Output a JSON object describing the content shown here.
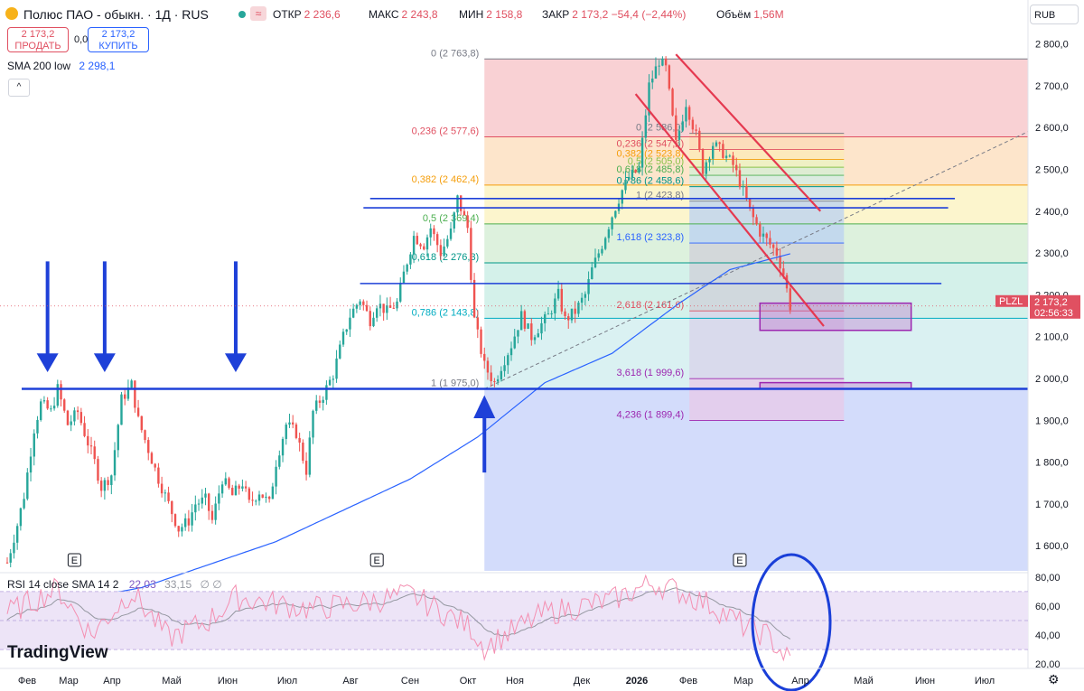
{
  "header": {
    "title": "Полюс ПАО - обыкн. · 1Д · RUS",
    "ohlc": [
      {
        "k": "ОТКР",
        "v": "2 236,6"
      },
      {
        "k": "МАКС",
        "v": "2 243,8"
      },
      {
        "k": "МИН",
        "v": "2 158,8"
      },
      {
        "k": "ЗАКР",
        "v": "2 173,2 −54,4 (−2,44%)"
      },
      {
        "k": "Объём",
        "v": "1,56M"
      }
    ],
    "wave_icon": "≈",
    "sell": {
      "price": "2 173,2",
      "label": "ПРОДАТЬ"
    },
    "buy": {
      "price": "2 173,2",
      "label": "КУПИТЬ"
    },
    "spread": "0,0",
    "currency": "RUB",
    "collapse_icon": "^"
  },
  "sma": {
    "label": "SMA 200 low",
    "value": "2 298,1"
  },
  "rsi": {
    "label": "RSI 14 close SMA 14 2",
    "value": "22,03",
    "sma_value": "33,15",
    "extra": "∅ ∅"
  },
  "branding": "TradingView",
  "colors": {
    "up": "#26a69a",
    "down": "#ef5350",
    "blue": "#1e40d8",
    "sma": "#2962ff",
    "rsi": "#7e57c2",
    "accent_red": "#e05061"
  },
  "chart_data": {
    "type": "candlestick",
    "symbol": "PLZL",
    "timeframe": "1Д",
    "y_axis": {
      "min": 1540,
      "max": 2840,
      "ticks": [
        "2 800,0",
        "2 700,0",
        "2 600,0",
        "2 500,0",
        "2 400,0",
        "2 300,0",
        "2 200,0",
        "2 100,0",
        "2 000,0",
        "1 900,0",
        "1 800,0",
        "1 700,0",
        "1 600,0"
      ]
    },
    "x_axis": {
      "labels": [
        "Фев",
        "Мар",
        "Апр",
        "Май",
        "Июн",
        "Июл",
        "Авг",
        "Сен",
        "Окт",
        "Ноя",
        "Дек",
        "2026",
        "Фев",
        "Мар",
        "Апр",
        "Май",
        "Июн",
        "Июл"
      ]
    },
    "price_path": [
      [
        0,
        1560
      ],
      [
        3,
        1650
      ],
      [
        5,
        1720
      ],
      [
        8,
        1880
      ],
      [
        10,
        1940
      ],
      [
        13,
        1920
      ],
      [
        15,
        1975
      ],
      [
        18,
        1890
      ],
      [
        21,
        1920
      ],
      [
        23,
        1870
      ],
      [
        26,
        1800
      ],
      [
        28,
        1740
      ],
      [
        31,
        1770
      ],
      [
        34,
        1950
      ],
      [
        37,
        1985
      ],
      [
        39,
        1900
      ],
      [
        42,
        1830
      ],
      [
        45,
        1760
      ],
      [
        48,
        1700
      ],
      [
        51,
        1640
      ],
      [
        54,
        1660
      ],
      [
        56,
        1700
      ],
      [
        59,
        1710
      ],
      [
        61,
        1660
      ],
      [
        64,
        1760
      ],
      [
        67,
        1720
      ],
      [
        70,
        1750
      ],
      [
        72,
        1700
      ],
      [
        75,
        1730
      ],
      [
        78,
        1700
      ],
      [
        80,
        1800
      ],
      [
        83,
        1890
      ],
      [
        86,
        1870
      ],
      [
        89,
        1780
      ],
      [
        91,
        1920
      ],
      [
        94,
        1960
      ],
      [
        97,
        2010
      ],
      [
        100,
        2100
      ],
      [
        102,
        2150
      ],
      [
        105,
        2190
      ],
      [
        108,
        2140
      ],
      [
        110,
        2180
      ],
      [
        113,
        2160
      ],
      [
        116,
        2180
      ],
      [
        118,
        2250
      ],
      [
        121,
        2340
      ],
      [
        124,
        2320
      ],
      [
        126,
        2360
      ],
      [
        129,
        2300
      ],
      [
        132,
        2350
      ],
      [
        134,
        2430
      ],
      [
        137,
        2360
      ],
      [
        139,
        2140
      ],
      [
        142,
        2030
      ],
      [
        145,
        1990
      ],
      [
        147,
        2030
      ],
      [
        150,
        2080
      ],
      [
        153,
        2150
      ],
      [
        156,
        2100
      ],
      [
        158,
        2120
      ],
      [
        161,
        2150
      ],
      [
        164,
        2200
      ],
      [
        166,
        2140
      ],
      [
        169,
        2160
      ],
      [
        172,
        2200
      ],
      [
        174,
        2260
      ],
      [
        177,
        2320
      ],
      [
        180,
        2390
      ],
      [
        183,
        2450
      ],
      [
        185,
        2480
      ],
      [
        188,
        2500
      ],
      [
        191,
        2700
      ],
      [
        194,
        2760
      ],
      [
        196,
        2740
      ],
      [
        199,
        2560
      ],
      [
        202,
        2660
      ],
      [
        205,
        2580
      ],
      [
        207,
        2500
      ],
      [
        210,
        2560
      ],
      [
        213,
        2540
      ],
      [
        216,
        2510
      ],
      [
        218,
        2470
      ],
      [
        221,
        2400
      ],
      [
        224,
        2350
      ],
      [
        226,
        2330
      ],
      [
        229,
        2300
      ],
      [
        231,
        2250
      ],
      [
        233,
        2173.2
      ]
    ],
    "sma200": [
      [
        0,
        1440
      ],
      [
        40,
        1500
      ],
      [
        80,
        1610
      ],
      [
        120,
        1760
      ],
      [
        140,
        1860
      ],
      [
        160,
        1990
      ],
      [
        180,
        2060
      ],
      [
        200,
        2180
      ],
      [
        215,
        2260
      ],
      [
        233,
        2298.1
      ]
    ],
    "horizontal_levels": [
      {
        "name": "support",
        "value": 1975
      },
      {
        "name": "line-2227",
        "value": 2227
      },
      {
        "name": "line-2408",
        "value": 2408
      },
      {
        "name": "line-2430",
        "value": 2430
      }
    ],
    "fib_big": [
      {
        "label": "0 (2 763,8)",
        "value": 2763.8
      },
      {
        "label": "0,236 (2 577,6)",
        "value": 2577.6
      },
      {
        "label": "0,382 (2 462,4)",
        "value": 2462.4
      },
      {
        "label": "0,5 (2 369,4)",
        "value": 2369.4
      },
      {
        "label": "0,618 (2 276,3)",
        "value": 2276.3
      },
      {
        "label": "0,786 (2 143,8)",
        "value": 2143.8
      },
      {
        "label": "1 (1 975,0)",
        "value": 1975.0
      }
    ],
    "fib_small": [
      {
        "label": "0 (2 586,0)",
        "value": 2586.0
      },
      {
        "label": "0,236 (2 547,6)",
        "value": 2547.6
      },
      {
        "label": "0,382 (2 523,8)",
        "value": 2523.8
      },
      {
        "label": "0,5 (2 505,0)",
        "value": 2505.0
      },
      {
        "label": "0,618 (2 485,8)",
        "value": 2485.8
      },
      {
        "label": "0,786 (2 458,6)",
        "value": 2458.6
      },
      {
        "label": "1 (2 423,8)",
        "value": 2423.8
      },
      {
        "label": "1,618 (2 323,8)",
        "value": 2323.8
      },
      {
        "label": "2,618 (2 161,6)",
        "value": 2161.6
      },
      {
        "label": "3,618 (1 999,6)",
        "value": 1999.6
      },
      {
        "label": "4,236 (1 899,4)",
        "value": 1899.4
      }
    ],
    "target_boxes": [
      [
        2115,
        2180
      ],
      [
        1975,
        1990
      ]
    ],
    "arrows_down_idx": [
      12,
      29,
      68
    ],
    "arrow_up_idx": 142,
    "last_price": {
      "symbol": "PLZL",
      "price": "2 173,2",
      "timer": "02:56:33"
    },
    "rsi_axis": [
      "80,00",
      "60,00",
      "40,00",
      "20,00"
    ],
    "rsi_levels": [
      70,
      30,
      50
    ],
    "event_markers": [
      {
        "label": "E",
        "idx": 20
      },
      {
        "label": "E",
        "idx": 110
      },
      {
        "label": "E",
        "idx": 218
      }
    ],
    "annotation": "oval around latest RSI"
  }
}
